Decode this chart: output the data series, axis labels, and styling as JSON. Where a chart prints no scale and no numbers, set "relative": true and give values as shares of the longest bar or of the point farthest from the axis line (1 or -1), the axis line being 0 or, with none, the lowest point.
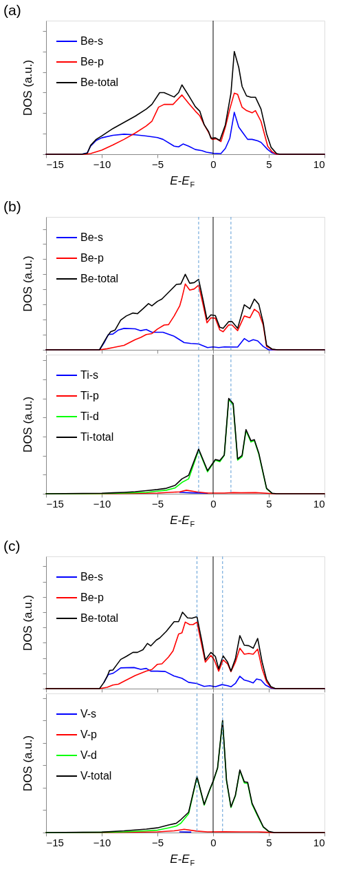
{
  "chart_data": [
    {
      "type": "line",
      "title": "(a)",
      "xlabel": "E-E$_{F}$",
      "ylabel": "DOS (a.u.)",
      "relative": true,
      "xlim": [
        -15,
        10
      ],
      "xticks": [
        -15,
        -10,
        -5,
        0,
        5,
        10
      ],
      "tick_labels": "x",
      "legend": "top left",
      "ref_lines": [
        {
          "axis": "x",
          "value": 0,
          "color": "#000000",
          "line_style": "solid"
        }
      ],
      "series": [
        {
          "name": "Be-s",
          "color": "#0000ff",
          "x": [
            -15,
            -11.8,
            -11.3,
            -11,
            -10.5,
            -10,
            -9,
            -8,
            -7,
            -6,
            -5,
            -4.5,
            -3.5,
            -3.1,
            -2.7,
            -2.2,
            -1.6,
            -1,
            -0.6,
            0,
            0.7,
            1.1,
            1.5,
            1.9,
            2.3,
            2.8,
            3.1,
            3.5,
            4,
            4.3,
            4.9,
            5.3,
            5.7,
            10
          ],
          "values": [
            0,
            0,
            0.013,
            0.079,
            0.134,
            0.16,
            0.184,
            0.195,
            0.189,
            0.178,
            0.162,
            0.145,
            0.079,
            0.072,
            0.1,
            0.079,
            0.046,
            0.035,
            0.02,
            0.009,
            0.007,
            0.057,
            0.156,
            0.408,
            0.265,
            0.189,
            0.145,
            0.145,
            0.13,
            0.116,
            0.046,
            0.013,
            0,
            0
          ]
        },
        {
          "name": "Be-p",
          "color": "#ff0000",
          "x": [
            -15,
            -11.5,
            -11,
            -10,
            -9,
            -8,
            -7,
            -6,
            -5.5,
            -4.9,
            -4.4,
            -3.6,
            -2.8,
            -2.2,
            -1.6,
            -1.2,
            -0.8,
            -0.4,
            -0.1,
            0.3,
            0.7,
            1.1,
            1.5,
            1.9,
            2.2,
            2.6,
            3,
            3.5,
            3.8,
            4.3,
            4.9,
            5.3,
            5.7,
            10
          ],
          "values": [
            0,
            0,
            0.007,
            0.04,
            0.09,
            0.145,
            0.206,
            0.276,
            0.32,
            0.458,
            0.485,
            0.485,
            0.577,
            0.496,
            0.42,
            0.375,
            0.287,
            0.21,
            0.145,
            0.151,
            0.123,
            0.265,
            0.44,
            0.594,
            0.583,
            0.458,
            0.425,
            0.403,
            0.425,
            0.32,
            0.079,
            0.024,
            0,
            0
          ]
        },
        {
          "name": "Be-total",
          "color": "#000000",
          "x": [
            -15,
            -11.8,
            -11.3,
            -11,
            -10.5,
            -10,
            -9,
            -8,
            -7,
            -6,
            -5.5,
            -4.8,
            -4.4,
            -3.5,
            -3.1,
            -2.8,
            -2.2,
            -1.6,
            -1.2,
            -0.8,
            -0.4,
            -0.2,
            0.2,
            0.6,
            1.1,
            1.6,
            1.9,
            2.3,
            2.6,
            3,
            3.4,
            3.8,
            4.3,
            4.8,
            5.2,
            5.7,
            6,
            10
          ],
          "values": [
            0,
            0,
            0.01,
            0.086,
            0.145,
            0.178,
            0.25,
            0.31,
            0.37,
            0.44,
            0.485,
            0.6,
            0.6,
            0.557,
            0.6,
            0.675,
            0.572,
            0.463,
            0.42,
            0.287,
            0.22,
            0.156,
            0.16,
            0.134,
            0.287,
            0.594,
            1,
            0.846,
            0.66,
            0.568,
            0.555,
            0.555,
            0.44,
            0.2,
            0.068,
            0.007,
            0,
            0
          ]
        }
      ]
    },
    {
      "type": "line",
      "title": "(b)",
      "ylabel": "DOS (a.u.)",
      "relative": true,
      "xlim": [
        -15,
        10
      ],
      "xticks": [
        -15,
        -10,
        -5,
        0,
        5,
        10
      ],
      "tick_labels": false,
      "legend": "top left",
      "ref_lines": [
        {
          "axis": "x",
          "value": 0,
          "color": "#000000",
          "line_style": "solid"
        },
        {
          "axis": "x",
          "value": -1.3,
          "color": "#5b9bd5",
          "line_style": "dashed"
        },
        {
          "axis": "x",
          "value": 1.6,
          "color": "#5b9bd5",
          "line_style": "dashed"
        }
      ],
      "series": [
        {
          "name": "Be-s",
          "color": "#0000ff",
          "x": [
            -15,
            -10.2,
            -9.8,
            -9.4,
            -9,
            -8.5,
            -8,
            -7,
            -6.5,
            -6,
            -5.5,
            -4.5,
            -3.5,
            -2.6,
            -2,
            -1.3,
            -0.5,
            0,
            0.5,
            1,
            2.2,
            2.8,
            3.2,
            3.6,
            4,
            4.5,
            5,
            10
          ],
          "values": [
            0,
            0,
            0.09,
            0.203,
            0.209,
            0.263,
            0.284,
            0.278,
            0.254,
            0.269,
            0.233,
            0.233,
            0.179,
            0.096,
            0.084,
            0.078,
            0.03,
            0.039,
            0.03,
            0.039,
            0.036,
            0.149,
            0.11,
            0.134,
            0.119,
            0.045,
            0,
            0
          ]
        },
        {
          "name": "Be-p",
          "color": "#ff0000",
          "x": [
            -15,
            -10.2,
            -9.5,
            -9,
            -8,
            -7,
            -6.5,
            -6,
            -5.5,
            -5,
            -4.4,
            -4,
            -3.5,
            -3,
            -2.8,
            -2.5,
            -2.1,
            -1.7,
            -1.3,
            -0.9,
            -0.55,
            -0.2,
            0.2,
            0.6,
            0.9,
            1.4,
            1.7,
            2.2,
            2.8,
            3.3,
            3.7,
            4.1,
            4.5,
            4.8,
            5.3,
            5.8,
            10
          ],
          "values": [
            0,
            0,
            0.015,
            0.03,
            0.06,
            0.134,
            0.164,
            0.203,
            0.215,
            0.275,
            0.328,
            0.334,
            0.448,
            0.582,
            0.687,
            0.872,
            0.791,
            0.806,
            0.857,
            0.597,
            0.358,
            0.424,
            0.418,
            0.263,
            0.239,
            0.331,
            0.328,
            0.254,
            0.448,
            0.424,
            0.537,
            0.493,
            0.328,
            0.045,
            0.006,
            0,
            0
          ]
        },
        {
          "name": "Be-total",
          "color": "#000000",
          "x": [
            -15,
            -10.2,
            -9.8,
            -9.5,
            -9.2,
            -8.8,
            -8.3,
            -7.8,
            -7.2,
            -6.8,
            -6.3,
            -5.8,
            -5.5,
            -5,
            -4.6,
            -4,
            -3.3,
            -2.9,
            -2.5,
            -2.1,
            -1.7,
            -1.3,
            -0.9,
            -0.55,
            -0.2,
            0.2,
            0.6,
            0.9,
            1.4,
            1.7,
            2.2,
            2.8,
            3.3,
            3.7,
            4.1,
            4.5,
            4.8,
            5.3,
            5.8,
            10
          ],
          "values": [
            0,
            0,
            0.104,
            0.179,
            0.239,
            0.263,
            0.394,
            0.448,
            0.487,
            0.478,
            0.543,
            0.612,
            0.582,
            0.642,
            0.672,
            0.761,
            0.866,
            0.872,
            1,
            0.881,
            0.89,
            0.934,
            0.657,
            0.403,
            0.463,
            0.454,
            0.299,
            0.284,
            0.373,
            0.373,
            0.284,
            0.597,
            0.543,
            0.672,
            0.603,
            0.358,
            0.06,
            0.009,
            0,
            0
          ]
        }
      ]
    },
    {
      "type": "line",
      "xlabel": "E-E$_{F}$",
      "ylabel": "DOS (a.u.)",
      "relative": true,
      "xlim": [
        -15,
        10
      ],
      "xticks": [
        -15,
        -10,
        -5,
        0,
        5,
        10
      ],
      "tick_labels": "x",
      "legend": "top left",
      "ref_lines": [
        {
          "axis": "x",
          "value": 0,
          "color": "#000000",
          "line_style": "solid"
        },
        {
          "axis": "x",
          "value": -1.3,
          "color": "#5b9bd5",
          "line_style": "dashed"
        },
        {
          "axis": "x",
          "value": 1.6,
          "color": "#5b9bd5",
          "line_style": "dashed"
        }
      ],
      "series": [
        {
          "name": "Ti-s",
          "color": "#0000ff",
          "x": [
            -3,
            -2,
            -0.5
          ],
          "values": [
            0.015,
            0.01,
            0.005
          ]
        },
        {
          "name": "Ti-p",
          "color": "#ff0000",
          "x": [
            -15,
            -10,
            -5,
            -3,
            -2.4,
            -1.5,
            -0.5,
            1,
            1.8,
            2.5,
            3.8,
            4.8,
            5.5,
            10
          ],
          "values": [
            0,
            0,
            0.007,
            0.02,
            0.037,
            0.02,
            0.007,
            0.007,
            0.012,
            0.01,
            0.012,
            0.005,
            0,
            0
          ]
        },
        {
          "name": "Ti-d",
          "color": "#00ff00",
          "x": [
            -15,
            -10,
            -8,
            -6,
            -5,
            -4.2,
            -3.4,
            -2.8,
            -2.2,
            -1.3,
            -0.5,
            0.2,
            0.6,
            1,
            1.4,
            1.8,
            2.2,
            2.6,
            2.95,
            3.4,
            3.7,
            4.1,
            4.8,
            5.3
          ],
          "values": [
            0,
            0.002,
            0.007,
            0.015,
            0.027,
            0.037,
            0.062,
            0.119,
            0.156,
            0.459,
            0.23,
            0.353,
            0.336,
            0.402,
            0.99,
            0.933,
            0.353,
            0.39,
            0.662,
            0.543,
            0.558,
            0.415,
            0.052,
            0.005
          ]
        },
        {
          "name": "Ti-total",
          "color": "#000000",
          "x": [
            -15,
            -10,
            -9,
            -8,
            -7,
            -6,
            -5,
            -4.2,
            -3.4,
            -2.8,
            -2.2,
            -1.3,
            -0.5,
            0.2,
            0.6,
            1,
            1.4,
            1.8,
            2.2,
            2.6,
            2.95,
            3.4,
            3.7,
            4.1,
            4.8,
            5.3,
            5.7,
            10
          ],
          "values": [
            0,
            0.005,
            0.01,
            0.015,
            0.022,
            0.032,
            0.044,
            0.057,
            0.089,
            0.156,
            0.193,
            0.469,
            0.242,
            0.36,
            0.348,
            0.407,
            1,
            0.946,
            0.365,
            0.402,
            0.674,
            0.556,
            0.568,
            0.427,
            0.057,
            0.005,
            0,
            0
          ]
        }
      ]
    },
    {
      "type": "line",
      "title": "(c)",
      "ylabel": "DOS (a.u.)",
      "relative": true,
      "xlim": [
        -15,
        10
      ],
      "xticks": [
        -15,
        -10,
        -5,
        0,
        5,
        10
      ],
      "tick_labels": false,
      "legend": "top left",
      "ref_lines": [
        {
          "axis": "x",
          "value": 0,
          "color": "#000000",
          "line_style": "solid"
        },
        {
          "axis": "x",
          "value": -1.45,
          "color": "#5b9bd5",
          "line_style": "dashed"
        },
        {
          "axis": "x",
          "value": 0.85,
          "color": "#5b9bd5",
          "line_style": "dashed"
        }
      ],
      "series": [
        {
          "name": "Be-s",
          "color": "#0000ff",
          "x": [
            -9.8,
            -9.4,
            -9,
            -8.7,
            -8.3,
            -7.8,
            -7.1,
            -6.5,
            -6,
            -5.6,
            -5,
            -4.3,
            -3.5,
            -2.8,
            -2.2,
            -1.5,
            -0.8,
            -0.3,
            0.2,
            0.8,
            1.3,
            1.6,
            2,
            2.4,
            2.8,
            3.2,
            3.6,
            3.9,
            4.3,
            4.7,
            5.2,
            5.5,
            10
          ],
          "values": [
            0.082,
            0.185,
            0.2,
            0.229,
            0.271,
            0.274,
            0.276,
            0.253,
            0.265,
            0.229,
            0.229,
            0.224,
            0.165,
            0.135,
            0.082,
            0.068,
            0.029,
            0.038,
            0.024,
            0.053,
            0.038,
            0.024,
            0.068,
            0.162,
            0.112,
            0.097,
            0.074,
            0.126,
            0.112,
            0.047,
            0.009,
            0,
            0
          ]
        },
        {
          "name": "Be-p",
          "color": "#ff0000",
          "x": [
            -15,
            -10.2,
            -9.5,
            -9,
            -8.5,
            -8,
            -7,
            -6,
            -5.5,
            -5,
            -4.6,
            -4,
            -3.6,
            -3.1,
            -2.8,
            -2.5,
            -2.1,
            -1.8,
            -1.45,
            -1,
            -0.7,
            -0.2,
            0.1,
            0.5,
            0.9,
            1.3,
            1.6,
            2,
            2.4,
            2.8,
            3.2,
            3.6,
            4,
            4.4,
            4.8,
            5.2,
            5.6,
            10
          ],
          "values": [
            0,
            0,
            0.018,
            0.047,
            0.059,
            0.097,
            0.171,
            0.229,
            0.25,
            0.318,
            0.324,
            0.415,
            0.494,
            0.715,
            0.729,
            0.871,
            0.838,
            0.838,
            0.871,
            0.553,
            0.347,
            0.435,
            0.376,
            0.229,
            0.376,
            0.324,
            0.221,
            0.347,
            0.529,
            0.45,
            0.459,
            0.45,
            0.518,
            0.259,
            0.088,
            0.015,
            0,
            0
          ]
        },
        {
          "name": "Be-total",
          "color": "#000000",
          "x": [
            -15,
            -10.2,
            -9.8,
            -9.5,
            -9.3,
            -9,
            -8.7,
            -8.3,
            -7.8,
            -7.2,
            -6.8,
            -6.3,
            -5.9,
            -5.6,
            -5.1,
            -4.8,
            -4.2,
            -3.5,
            -3.1,
            -2.75,
            -2.3,
            -1.9,
            -1.45,
            -1,
            -0.7,
            -0.2,
            0.2,
            0.5,
            0.9,
            1.3,
            1.6,
            2,
            2.4,
            2.8,
            3.2,
            3.6,
            4,
            4.4,
            4.8,
            5.2,
            5.6,
            10
          ],
          "values": [
            0,
            0,
            0.082,
            0.165,
            0.238,
            0.244,
            0.303,
            0.382,
            0.421,
            0.474,
            0.474,
            0.509,
            0.591,
            0.559,
            0.635,
            0.662,
            0.75,
            0.876,
            0.876,
            1,
            0.926,
            0.921,
            0.941,
            0.612,
            0.376,
            0.474,
            0.421,
            0.259,
            0.429,
            0.347,
            0.229,
            0.391,
            0.694,
            0.568,
            0.562,
            0.529,
            0.656,
            0.347,
            0.118,
            0.024,
            0,
            0
          ]
        }
      ]
    },
    {
      "type": "line",
      "xlabel": "E-E$_{F}$",
      "ylabel": "DOS (a.u.)",
      "relative": true,
      "xlim": [
        -15,
        10
      ],
      "xticks": [
        -15,
        -10,
        -5,
        0,
        5,
        10
      ],
      "tick_labels": "x",
      "legend": "top left",
      "ref_lines": [
        {
          "axis": "x",
          "value": 0,
          "color": "#000000",
          "line_style": "solid"
        },
        {
          "axis": "x",
          "value": -1.45,
          "color": "#5b9bd5",
          "line_style": "dashed"
        },
        {
          "axis": "x",
          "value": 0.85,
          "color": "#5b9bd5",
          "line_style": "dashed"
        }
      ],
      "series": [
        {
          "name": "V-s",
          "color": "#0000ff",
          "x": [
            -3,
            -2
          ],
          "values": [
            0.006,
            0.004
          ]
        },
        {
          "name": "V-p",
          "color": "#ff0000",
          "x": [
            -15,
            -10,
            -5,
            -3.5,
            -2.6,
            -1.5,
            -0.5,
            1,
            2.5,
            4,
            5,
            5.5,
            10
          ],
          "values": [
            0,
            0,
            0.006,
            0.015,
            0.029,
            0.013,
            0.006,
            0.008,
            0.006,
            0.006,
            0.002,
            0,
            0
          ]
        },
        {
          "name": "V-d",
          "color": "#00ff00",
          "x": [
            -15,
            -10,
            -8,
            -6,
            -5,
            -4,
            -3.3,
            -2.9,
            -2.2,
            -1.45,
            -0.8,
            -0.3,
            0,
            0.4,
            0.85,
            1.2,
            1.6,
            2,
            2.4,
            2.8,
            3.1,
            3.5,
            4,
            4.5,
            5
          ],
          "values": [
            0,
            0.002,
            0.006,
            0.015,
            0.021,
            0.042,
            0.058,
            0.083,
            0.167,
            0.494,
            0.244,
            0.381,
            0.452,
            0.573,
            0.994,
            0.463,
            0.223,
            0.327,
            0.552,
            0.442,
            0.438,
            0.25,
            0.146,
            0.048,
            0.008
          ]
        },
        {
          "name": "V-total",
          "color": "#000000",
          "x": [
            -15,
            -10,
            -8,
            -6,
            -5,
            -4,
            -3.3,
            -2.9,
            -2.2,
            -1.45,
            -0.8,
            -0.3,
            0,
            0.4,
            0.85,
            1.2,
            1.6,
            2,
            2.4,
            2.8,
            3.1,
            3.5,
            4,
            4.5,
            5,
            5.5,
            10
          ],
          "values": [
            0,
            0.004,
            0.015,
            0.031,
            0.042,
            0.067,
            0.083,
            0.115,
            0.181,
            0.5,
            0.25,
            0.385,
            0.458,
            0.577,
            1,
            0.469,
            0.229,
            0.333,
            0.558,
            0.452,
            0.448,
            0.26,
            0.156,
            0.052,
            0.01,
            0,
            0
          ]
        }
      ]
    }
  ]
}
